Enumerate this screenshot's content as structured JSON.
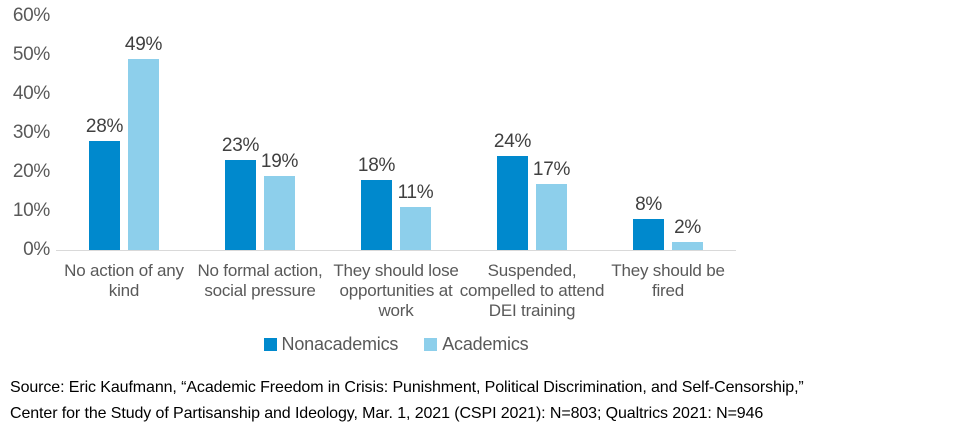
{
  "chart_data": {
    "type": "bar",
    "title": "",
    "xlabel": "",
    "ylabel": "",
    "categories": [
      "No action of any kind",
      "No formal action, social pressure",
      "They should lose opportunities at work",
      "Suspended, compelled to attend DEI training",
      "They should be fired"
    ],
    "series": [
      {
        "name": "Nonacademics",
        "color": "#0089cd",
        "values": [
          28,
          23,
          18,
          24,
          8
        ]
      },
      {
        "name": "Academics",
        "color": "#8dcfeb",
        "values": [
          49,
          19,
          11,
          17,
          2
        ]
      }
    ],
    "value_suffix": "%",
    "data_labels": true,
    "ylim": [
      0,
      60
    ],
    "yticks": [
      "0%",
      "10%",
      "20%",
      "30%",
      "40%",
      "50%",
      "60%"
    ],
    "grid": false,
    "axis_line_color": "#d9d9d9",
    "legend_position": "bottom"
  },
  "source": {
    "line1": "Source: Eric Kaufmann, “Academic Freedom in Crisis: Punishment, Political Discrimination, and Self-Censorship,”",
    "line2": "Center for the Study of Partisanship and Ideology, Mar. 1, 2021 (CSPI 2021): N=803; Qualtrics 2021: N=946"
  }
}
